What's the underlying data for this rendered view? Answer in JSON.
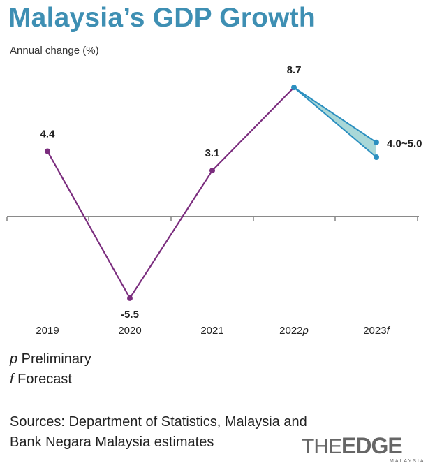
{
  "chart_data": {
    "type": "line",
    "title": "Malaysia’s GDP Growth",
    "ylabel": "Annual change (%)",
    "categories": [
      "2019",
      "2020",
      "2021",
      "2022",
      "2023"
    ],
    "category_suffixes": [
      "",
      "",
      "",
      "p",
      "f"
    ],
    "series": [
      {
        "name": "GDP growth",
        "values": [
          4.4,
          -5.5,
          3.1,
          8.7,
          null
        ],
        "color": "#7b2d7e"
      }
    ],
    "forecast": {
      "from_category": "2022",
      "to_category": "2023",
      "from_value": 8.7,
      "low": 4.0,
      "high": 5.0,
      "color": "#2b8fc0",
      "fill": "#a9d8d8"
    },
    "data_labels": [
      "4.4",
      "-5.5",
      "3.1",
      "8.7",
      "4.0~5.0"
    ],
    "ylim": [
      -6.5,
      9.5
    ]
  },
  "notes": [
    {
      "symbol": "p",
      "text": " Preliminary"
    },
    {
      "symbol": "f",
      "text": " Forecast"
    }
  ],
  "sources": {
    "line1": "Sources: Department of Statistics, Malaysia and",
    "line2": "Bank Negara Malaysia estimates"
  },
  "logo": {
    "the": "THE",
    "edge": "EDGE",
    "sub": "MALAYSIA"
  }
}
